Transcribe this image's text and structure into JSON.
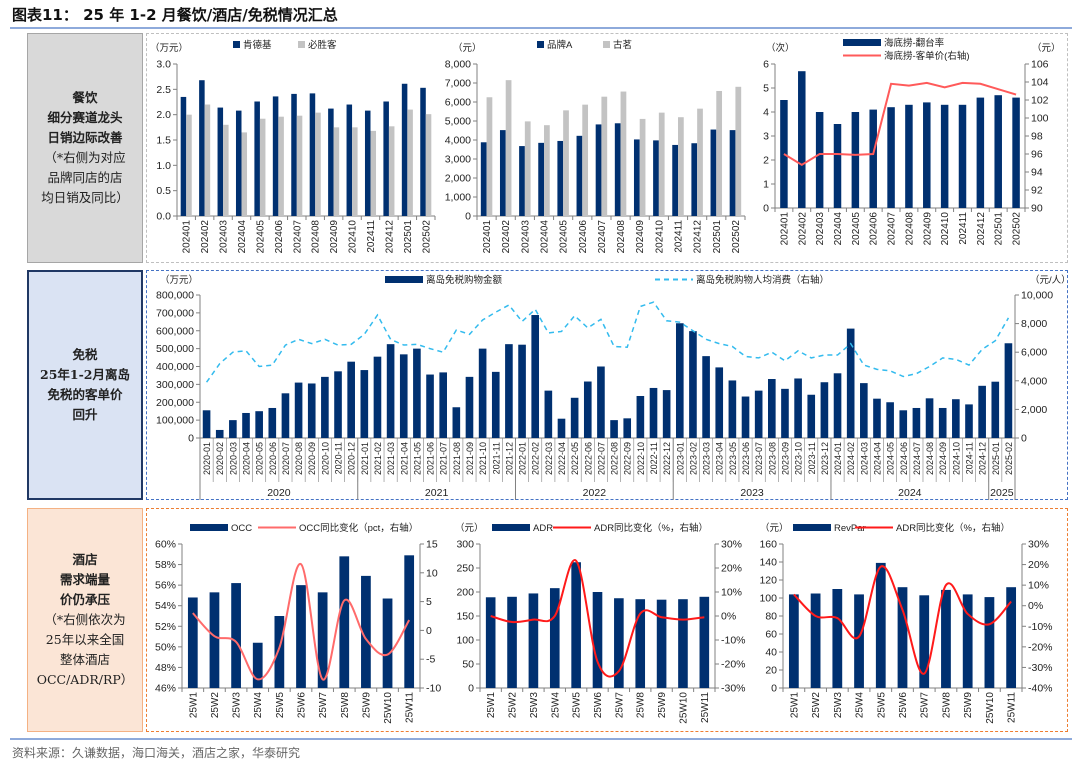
{
  "title": "图表11：  25 年 1-2 月餐饮/酒店/免税情况汇总",
  "source": "资料来源：久谦数据，海口海关，酒店之家，华泰研究",
  "sections": [
    {
      "lines": [
        "餐饮",
        "细分赛道龙头",
        "日销边际改善",
        "（*右侧为对应",
        "品牌同店的店",
        "均日销及同比）"
      ],
      "bold_lines": 3
    },
    {
      "lines": [
        "免税",
        "25年1-2月离岛",
        "免税的客单价",
        "回升"
      ],
      "bold_lines": 4
    },
    {
      "lines": [
        "酒店",
        "需求端量",
        "价仍承压",
        "（*右侧依次为",
        "25年以来全国",
        "整体酒店",
        "OCC/ADR/RP）"
      ],
      "bold_lines": 3
    }
  ],
  "chart_data": [
    {
      "id": "kfc-pizzahut",
      "type": "bar",
      "unit_left": "（万元）",
      "categories": [
        "202401",
        "202402",
        "202403",
        "202404",
        "202405",
        "202406",
        "202407",
        "202408",
        "202409",
        "202410",
        "202411",
        "202412",
        "202501",
        "202502"
      ],
      "yleft": {
        "min": 0,
        "max": 3,
        "step": 0.5,
        "tick_labels": [
          "0.0",
          "0.5",
          "1.0",
          "1.5",
          "2.0",
          "2.5",
          "3.0"
        ]
      },
      "series": [
        {
          "name": "肯德基",
          "type": "bar",
          "axis": "left",
          "color": "#003070",
          "values": [
            2.35,
            2.68,
            2.14,
            2.08,
            2.26,
            2.36,
            2.41,
            2.42,
            2.12,
            2.2,
            2.08,
            2.26,
            2.61,
            2.53
          ]
        },
        {
          "name": "必胜客",
          "type": "bar",
          "axis": "left",
          "color": "#c3c3c3",
          "values": [
            2.0,
            2.2,
            1.8,
            1.65,
            1.92,
            1.96,
            1.98,
            2.04,
            1.75,
            1.75,
            1.68,
            1.77,
            2.1,
            2.01
          ]
        }
      ]
    },
    {
      "id": "tea-brands",
      "type": "bar",
      "unit_left": "（元）",
      "categories": [
        "202401",
        "202402",
        "202403",
        "202404",
        "202405",
        "202406",
        "202407",
        "202408",
        "202409",
        "202410",
        "202411",
        "202412",
        "202501",
        "202502"
      ],
      "yleft": {
        "min": 0,
        "max": 8000,
        "step": 1000,
        "tick_labels": [
          "0",
          "1,000",
          "2,000",
          "3,000",
          "4,000",
          "5,000",
          "6,000",
          "7,000",
          "8,000"
        ]
      },
      "series": [
        {
          "name": "品牌A",
          "type": "bar",
          "axis": "left",
          "color": "#003070",
          "values": [
            3880,
            4520,
            3680,
            3850,
            3950,
            4220,
            4820,
            4880,
            4030,
            3980,
            3740,
            3830,
            4550,
            4520
          ]
        },
        {
          "name": "古茗",
          "type": "bar",
          "axis": "left",
          "color": "#c3c3c3",
          "values": [
            6250,
            7150,
            4980,
            4780,
            5560,
            5860,
            6280,
            6550,
            5110,
            5440,
            5200,
            5650,
            6580,
            6800
          ]
        }
      ]
    },
    {
      "id": "haidilao",
      "type": "bar+line",
      "unit_left": "（次）",
      "unit_right": "（元）",
      "categories": [
        "202401",
        "202402",
        "202403",
        "202404",
        "202405",
        "202406",
        "202407",
        "202408",
        "202409",
        "202410",
        "202411",
        "202412",
        "202501",
        "202502"
      ],
      "yleft": {
        "min": 0,
        "max": 6,
        "step": 1,
        "tick_labels": [
          "0",
          "1",
          "2",
          "3",
          "4",
          "5",
          "6"
        ]
      },
      "yright": {
        "min": 90,
        "max": 106,
        "step": 2,
        "tick_labels": [
          "90",
          "92",
          "94",
          "96",
          "98",
          "100",
          "102",
          "104",
          "106"
        ]
      },
      "series": [
        {
          "name": "海底捞-翻台率",
          "type": "bar",
          "axis": "left",
          "color": "#003070",
          "values": [
            4.5,
            5.7,
            4.0,
            3.5,
            4.0,
            4.1,
            4.2,
            4.3,
            4.4,
            4.3,
            4.3,
            4.6,
            4.7,
            4.6
          ]
        },
        {
          "name": "海底捞-客单价(右轴)",
          "type": "line",
          "axis": "right",
          "color": "#ff5a5a",
          "values": [
            96.0,
            94.8,
            96.0,
            96.0,
            95.9,
            96.0,
            103.8,
            103.6,
            103.9,
            103.4,
            103.9,
            103.8,
            103.2,
            102.6
          ]
        }
      ]
    },
    {
      "id": "duty-free",
      "type": "bar+line",
      "unit_left": "（万元）",
      "unit_right": "（元/人）",
      "categories": [
        "2020-01",
        "2020-02",
        "2020-03",
        "2020-04",
        "2020-05",
        "2020-06",
        "2020-07",
        "2020-08",
        "2020-09",
        "2020-10",
        "2020-11",
        "2020-12",
        "2021-01",
        "2021-02",
        "2021-03",
        "2021-04",
        "2021-05",
        "2021-06",
        "2021-07",
        "2021-08",
        "2021-09",
        "2021-10",
        "2021-11",
        "2021-12",
        "2022-01",
        "2022-02",
        "2022-03",
        "2022-04",
        "2022-05",
        "2022-06",
        "2022-07",
        "2022-08",
        "2022-09",
        "2022-10",
        "2022-11",
        "2022-12",
        "2023-01",
        "2023-02",
        "2023-03",
        "2023-04",
        "2023-05",
        "2023-06",
        "2023-07",
        "2023-08",
        "2023-09",
        "2023-10",
        "2023-11",
        "2023-12",
        "2024-01",
        "2024-02",
        "2024-03",
        "2024-04",
        "2024-05",
        "2024-06",
        "2024-07",
        "2024-08",
        "2024-09",
        "2024-10",
        "2024-11",
        "2024-12",
        "2025-01",
        "2025-02"
      ],
      "years": [
        {
          "label": "2020",
          "months": 12
        },
        {
          "label": "2021",
          "months": 12
        },
        {
          "label": "2022",
          "months": 12
        },
        {
          "label": "2023",
          "months": 12
        },
        {
          "label": "2024",
          "months": 12
        },
        {
          "label": "2025",
          "months": 2
        }
      ],
      "yleft": {
        "min": 0,
        "max": 800000,
        "step": 100000,
        "tick_labels": [
          "0",
          "100,000",
          "200,000",
          "300,000",
          "400,000",
          "500,000",
          "600,000",
          "700,000",
          "800,000"
        ]
      },
      "yright": {
        "min": 0,
        "max": 10000,
        "step": 2000,
        "tick_labels": [
          "0",
          "2,000",
          "4,000",
          "6,000",
          "8,000",
          "10,000"
        ]
      },
      "series": [
        {
          "name": "离岛免税购物金额",
          "type": "bar",
          "axis": "left",
          "color": "#003070",
          "values": [
            155000,
            45000,
            100000,
            140000,
            150000,
            168000,
            250000,
            310000,
            305000,
            342000,
            373000,
            427000,
            380000,
            455000,
            525000,
            468000,
            500000,
            355000,
            367000,
            172000,
            342000,
            500000,
            370000,
            525000,
            522000,
            688000,
            265000,
            108000,
            225000,
            316000,
            400000,
            100000,
            110000,
            235000,
            280000,
            268000,
            642000,
            598000,
            458000,
            395000,
            322000,
            232000,
            265000,
            330000,
            275000,
            333000,
            242000,
            312000,
            362000,
            612000,
            307000,
            220000,
            200000,
            155000,
            168000,
            222000,
            168000,
            217000,
            188000,
            292000,
            315000,
            530000
          ]
        },
        {
          "name": "离岛免税购物人均消费（右轴）",
          "type": "line",
          "axis": "right",
          "dashed": true,
          "color": "#33bbee",
          "values": [
            3900,
            5200,
            6000,
            6100,
            5000,
            5100,
            6500,
            6900,
            6600,
            6900,
            6500,
            6550,
            7250,
            8600,
            6900,
            6500,
            6550,
            6250,
            6000,
            7550,
            7250,
            8250,
            8800,
            9300,
            8150,
            9000,
            7350,
            7450,
            8550,
            7700,
            8300,
            6400,
            6350,
            9200,
            9500,
            8200,
            8100,
            7500,
            6900,
            6600,
            6400,
            5700,
            5600,
            6000,
            5400,
            6100,
            5600,
            5800,
            5800,
            6600,
            5100,
            4800,
            4700,
            4300,
            4500,
            5000,
            5600,
            5500,
            5100,
            6200,
            6800,
            8400
          ]
        }
      ]
    },
    {
      "id": "hotel-occ",
      "type": "bar+line",
      "categories": [
        "25W1",
        "25W2",
        "25W3",
        "25W4",
        "25W5",
        "25W6",
        "25W7",
        "25W8",
        "25W9",
        "25W10",
        "25W11"
      ],
      "yleft": {
        "min": 46,
        "max": 60,
        "step": 2,
        "tick_labels": [
          "46%",
          "48%",
          "50%",
          "52%",
          "54%",
          "56%",
          "58%",
          "60%"
        ]
      },
      "yright": {
        "min": -10,
        "max": 15,
        "step": 5,
        "tick_labels": [
          "-10",
          "-5",
          "0",
          "5",
          "10",
          "15"
        ]
      },
      "series": [
        {
          "name": "OCC",
          "type": "bar",
          "axis": "left",
          "color": "#003070",
          "values": [
            54.8,
            55.3,
            56.2,
            50.4,
            53.0,
            56.0,
            55.3,
            58.8,
            56.9,
            54.7,
            58.9
          ]
        },
        {
          "name": "OCC同比变化（pct，右轴）",
          "type": "line",
          "axis": "right",
          "smooth": true,
          "color": "#ff6b6b",
          "values": [
            3.0,
            -1.0,
            -2.0,
            -8.5,
            -3.0,
            11.5,
            -8.5,
            5.2,
            -1.5,
            -4.2,
            1.8
          ]
        }
      ]
    },
    {
      "id": "hotel-adr",
      "type": "bar+line",
      "unit_left": "（元）",
      "categories": [
        "25W1",
        "25W2",
        "25W3",
        "25W4",
        "25W5",
        "25W6",
        "25W7",
        "25W8",
        "25W9",
        "25W10",
        "25W11"
      ],
      "yleft": {
        "min": 0,
        "max": 300,
        "step": 50,
        "tick_labels": [
          "0",
          "50",
          "100",
          "150",
          "200",
          "250",
          "300"
        ]
      },
      "yright": {
        "min": -30,
        "max": 30,
        "step": 10,
        "tick_labels": [
          "-30%",
          "-20%",
          "-10%",
          "0%",
          "10%",
          "20%",
          "30%"
        ]
      },
      "series": [
        {
          "name": "ADR",
          "type": "bar",
          "axis": "left",
          "color": "#003070",
          "values": [
            189,
            190,
            197,
            208,
            262,
            200,
            187,
            185,
            184,
            185,
            190
          ]
        },
        {
          "name": "ADR同比变化（%，右轴）",
          "type": "line",
          "axis": "right",
          "smooth": true,
          "color": "#ff1a1a",
          "values": [
            0,
            -2.5,
            -1.5,
            0,
            23,
            -19,
            -23,
            1,
            -0.5,
            -1.5,
            -0.5
          ]
        }
      ]
    },
    {
      "id": "hotel-revpar",
      "type": "bar+line",
      "unit_left": "（元）",
      "categories": [
        "25W1",
        "25W2",
        "25W3",
        "25W4",
        "25W5",
        "25W6",
        "25W7",
        "25W8",
        "25W9",
        "25W10",
        "25W11"
      ],
      "yleft": {
        "min": 0,
        "max": 160,
        "step": 20,
        "tick_labels": [
          "0",
          "20",
          "40",
          "60",
          "80",
          "100",
          "120",
          "140",
          "160"
        ]
      },
      "yright": {
        "min": -40,
        "max": 30,
        "step": 10,
        "tick_labels": [
          "-40%",
          "-30%",
          "-20%",
          "-10%",
          "0%",
          "10%",
          "20%",
          "30%"
        ]
      },
      "series": [
        {
          "name": "RevPar",
          "type": "bar",
          "axis": "left",
          "color": "#003070",
          "values": [
            104,
            105,
            110,
            104,
            139,
            112,
            103,
            109,
            104,
            101,
            112
          ]
        },
        {
          "name": "ADR同比变化（%，右轴）",
          "type": "line",
          "axis": "right",
          "smooth": true,
          "color": "#ff1a1a",
          "values": [
            5.5,
            -5,
            -6,
            -15,
            19,
            -2,
            -33,
            10,
            -4,
            -9,
            2
          ]
        }
      ]
    }
  ]
}
